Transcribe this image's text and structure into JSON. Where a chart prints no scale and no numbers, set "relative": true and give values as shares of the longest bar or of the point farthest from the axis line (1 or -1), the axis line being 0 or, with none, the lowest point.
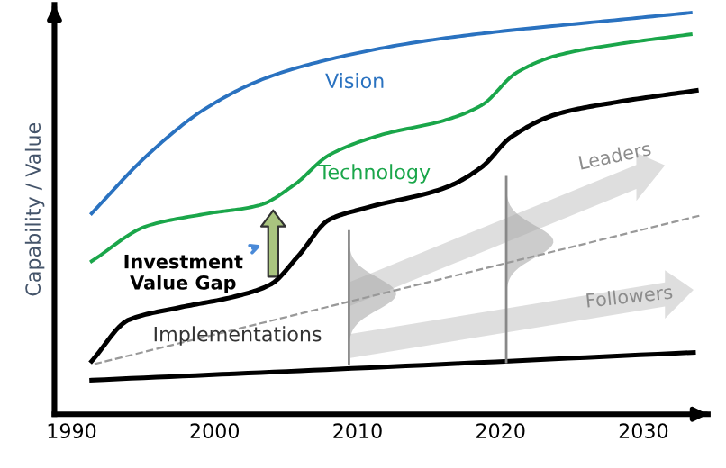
{
  "chart_data": {
    "type": "line",
    "relative": true,
    "ylabel": "Capability / Value",
    "xlim": [
      1988.8,
      2034.5
    ],
    "xticks": [
      1990,
      2000,
      2010,
      2020,
      2030
    ],
    "grid": false,
    "legend": false,
    "marker": "none",
    "series": [
      {
        "name": "Vision",
        "color": "#2a72c0",
        "x": [
          1991.4,
          1995.3,
          1999.4,
          2003.5,
          2007.6,
          2013.7,
          2019.9,
          2026.1,
          2033.3
        ],
        "values": [
          0.5,
          0.645,
          0.762,
          0.836,
          0.88,
          0.924,
          0.953,
          0.975,
          1.0
        ]
      },
      {
        "name": "Technology",
        "color": "#1aa64a",
        "x": [
          1991.4,
          1995.3,
          1999.4,
          2003.1,
          2005.6,
          2008.0,
          2011.7,
          2016.2,
          2018.7,
          2021.1,
          2024.0,
          2028.1,
          2033.3
        ],
        "values": [
          0.381,
          0.469,
          0.499,
          0.52,
          0.572,
          0.645,
          0.696,
          0.733,
          0.77,
          0.85,
          0.894,
          0.921,
          0.946
        ]
      },
      {
        "name": "Implementations",
        "color": "#000000",
        "x": [
          1991.4,
          1994.0,
          1997.3,
          2001.4,
          2003.9,
          2005.9,
          2008.0,
          2010.5,
          2016.2,
          2018.7,
          2020.7,
          2024.0,
          2028.1,
          2033.7
        ],
        "values": [
          0.132,
          0.235,
          0.264,
          0.293,
          0.323,
          0.396,
          0.484,
          0.513,
          0.565,
          0.616,
          0.689,
          0.748,
          0.777,
          0.806
        ]
      },
      {
        "color": "#000000",
        "x": [
          1991.4,
          2009.6,
          2033.5
        ],
        "values": [
          0.085,
          0.114,
          0.154
        ]
      },
      {
        "color": "#999999",
        "line_style": "dashed",
        "x": [
          1991.6,
          2034.1
        ],
        "values": [
          0.125,
          0.496
        ]
      }
    ],
    "annotations": [
      "Investment\nValue Gap",
      "Leaders",
      "Followers"
    ]
  }
}
